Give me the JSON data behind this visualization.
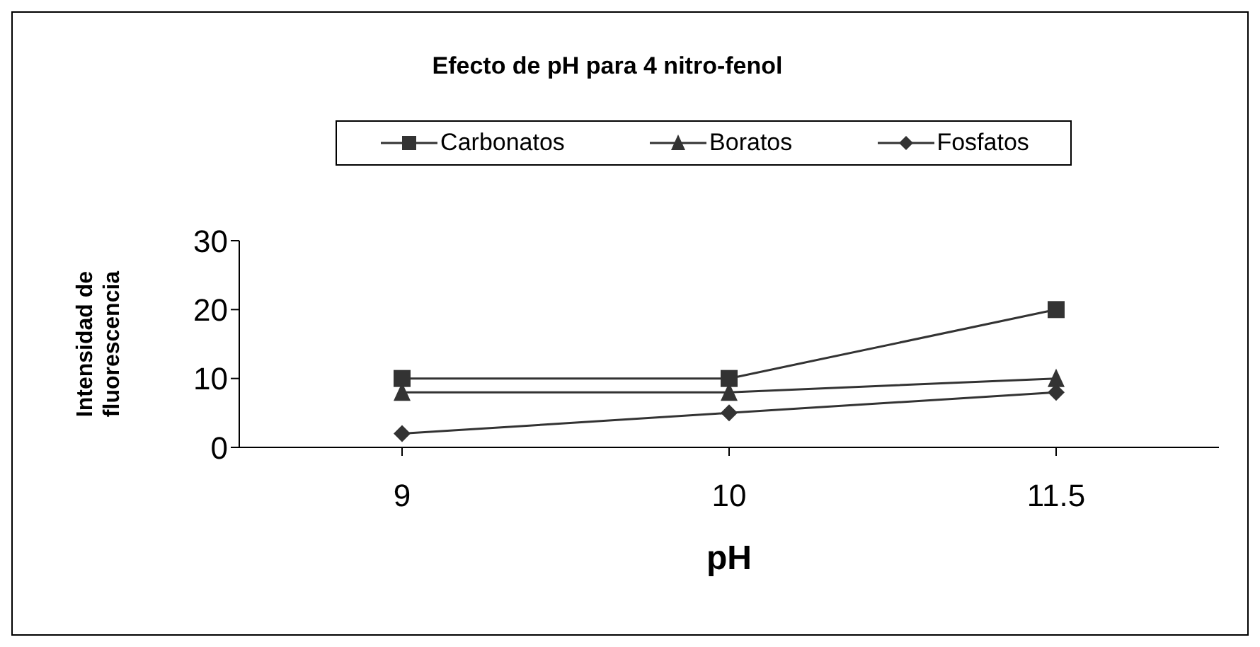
{
  "chart_data": {
    "type": "line",
    "title": "Efecto de pH para 4 nitro-fenol",
    "xlabel": "pH",
    "ylabel": "Intensidad de fluorescencia",
    "categories": [
      "9",
      "10",
      "11.5"
    ],
    "series": [
      {
        "name": "Carbonatos",
        "color": "#333333",
        "marker": "square",
        "values": [
          10,
          10,
          20
        ]
      },
      {
        "name": "Boratos",
        "color": "#333333",
        "marker": "triangle",
        "values": [
          8,
          8,
          10
        ]
      },
      {
        "name": "Fosfatos",
        "color": "#333333",
        "marker": "diamond",
        "values": [
          2,
          5,
          8
        ]
      }
    ],
    "ylim": [
      0,
      30
    ],
    "yticks": [
      0,
      10,
      20,
      30
    ],
    "grid": false,
    "legend": "top",
    "line_style": "solid"
  }
}
